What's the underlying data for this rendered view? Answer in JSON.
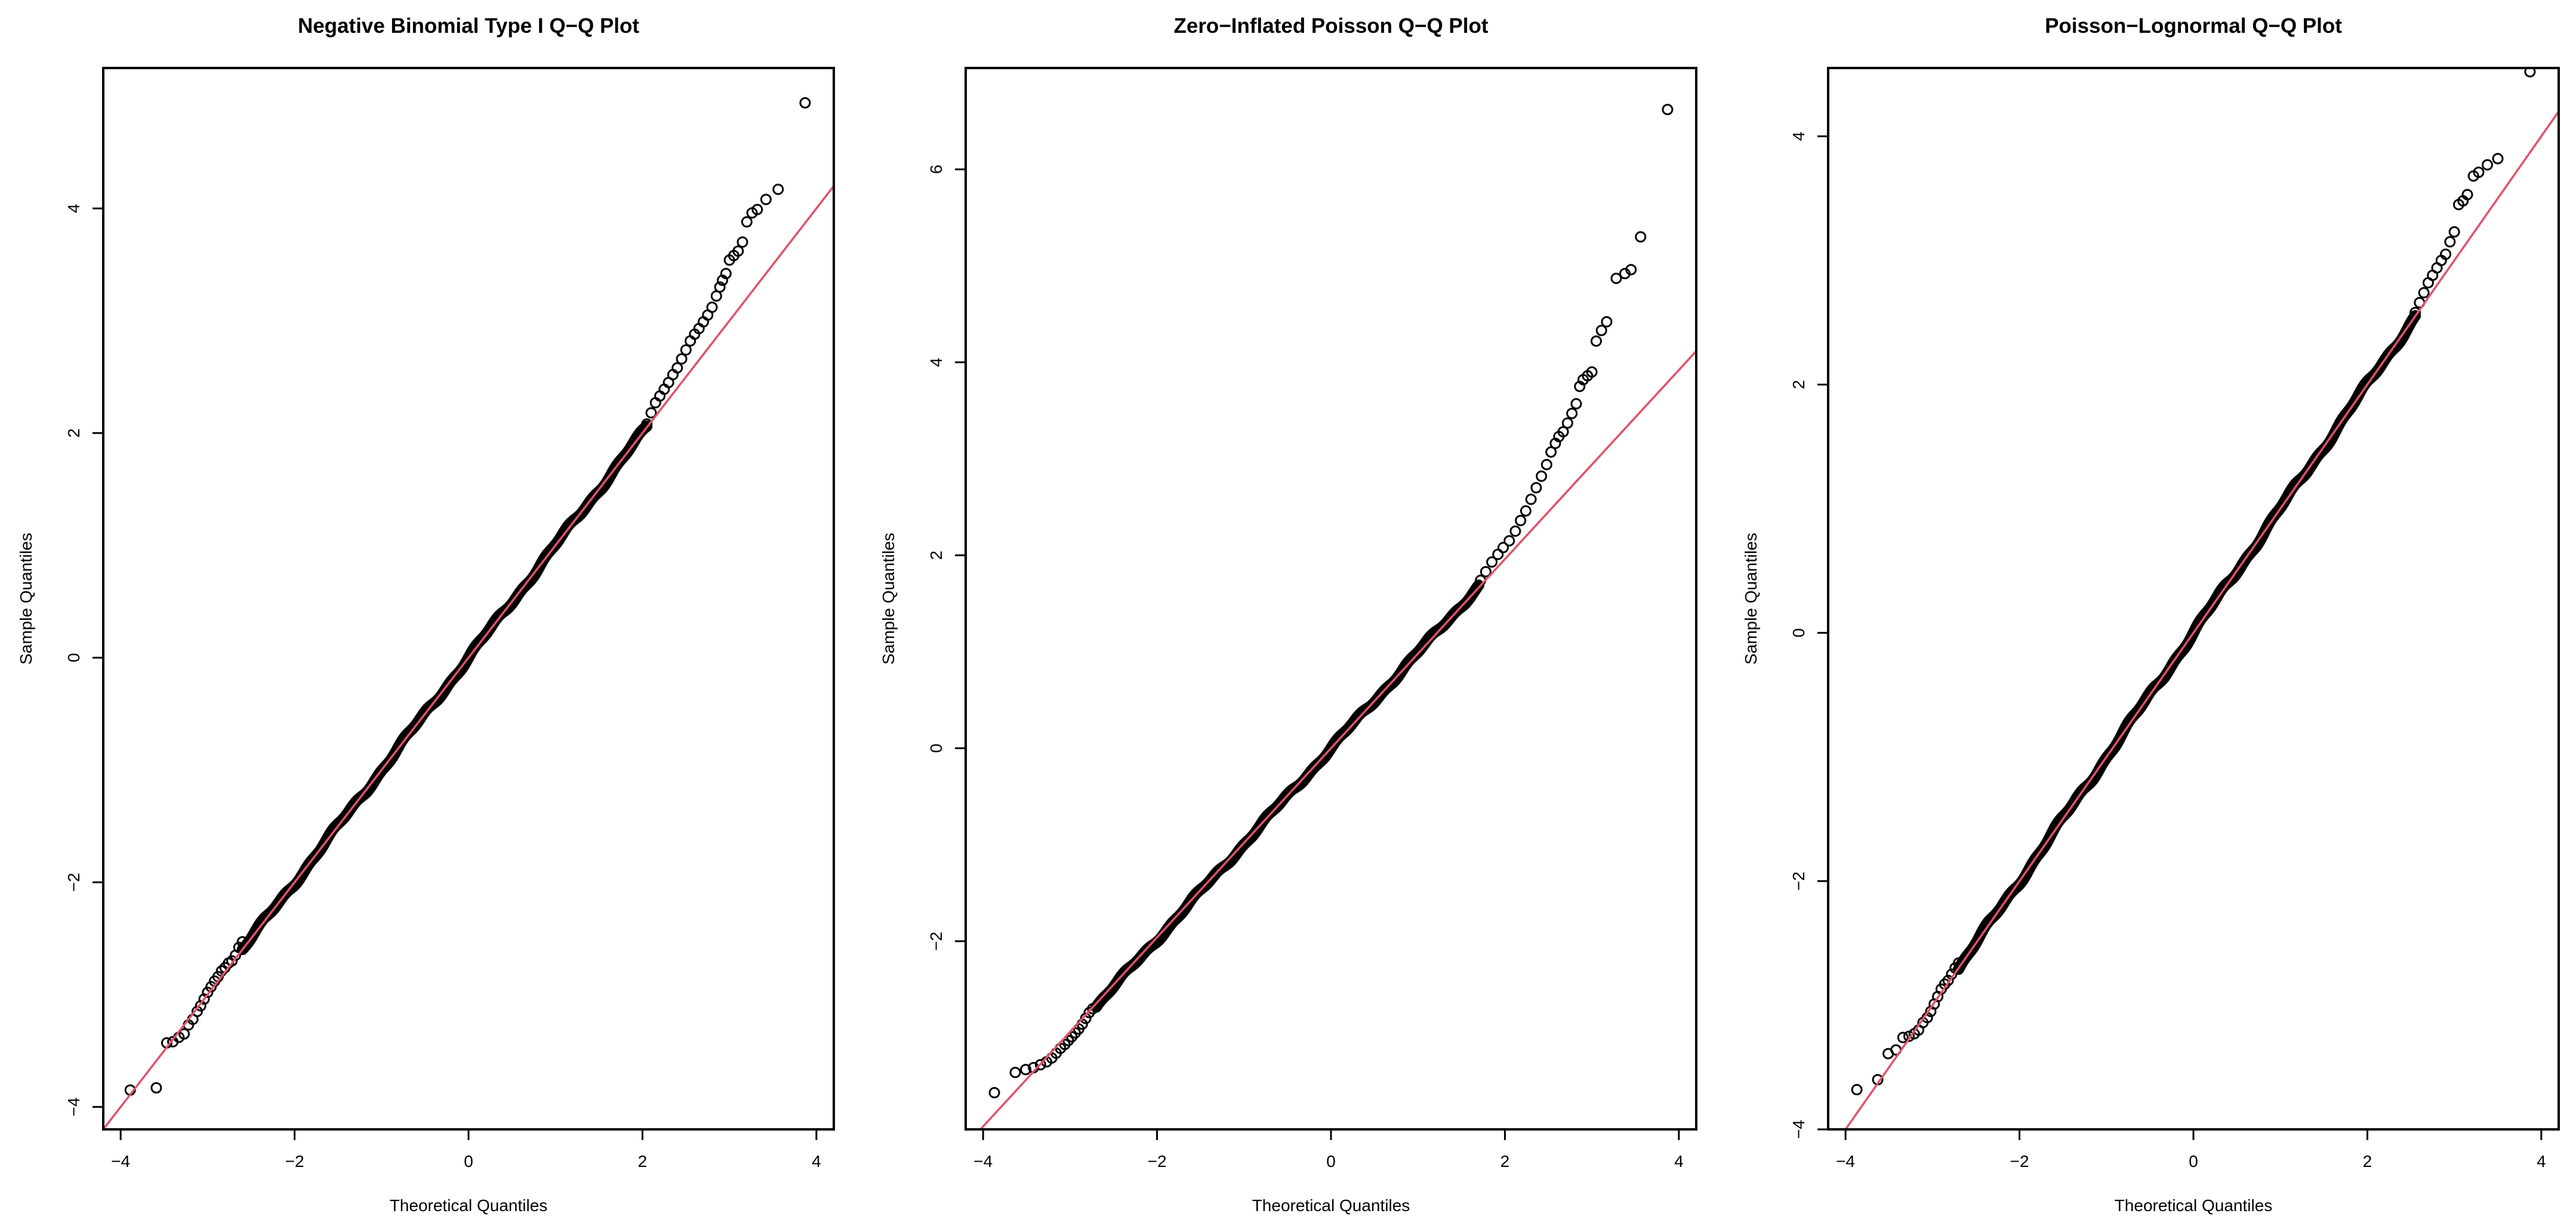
{
  "colors": {
    "points": "#000000",
    "reference_line": "#df536b",
    "background": "#ffffff"
  },
  "chart_data": [
    {
      "type": "scatter",
      "title": "Negative Binomial Type I Q−Q Plot",
      "xlabel": "Theoretical Quantiles",
      "ylabel": "Sample Quantiles",
      "xlim": [
        -4.2,
        4.2
      ],
      "ylim": [
        -4.2,
        5.25
      ],
      "xticks": [
        -4,
        -2,
        0,
        2,
        4
      ],
      "xtick_labels": [
        "−4",
        "−2",
        "0",
        "2",
        "4"
      ],
      "yticks": [
        -4,
        -2,
        0,
        2,
        4
      ],
      "ytick_labels": [
        "−4",
        "−2",
        "0",
        "2",
        "4"
      ],
      "reference_line": {
        "intercept": 0.0,
        "slope": 1.0
      },
      "lower_tail": [
        [
          -3.89,
          -3.85
        ],
        [
          -3.59,
          -3.83
        ],
        [
          -3.47,
          -3.43
        ],
        [
          -3.4,
          -3.42
        ],
        [
          -3.33,
          -3.38
        ],
        [
          -3.27,
          -3.35
        ],
        [
          -3.22,
          -3.27
        ],
        [
          -3.17,
          -3.22
        ],
        [
          -3.12,
          -3.15
        ],
        [
          -3.08,
          -3.1
        ],
        [
          -3.04,
          -3.04
        ],
        [
          -3.0,
          -2.98
        ],
        [
          -2.96,
          -2.93
        ],
        [
          -2.92,
          -2.88
        ],
        [
          -2.88,
          -2.84
        ],
        [
          -2.84,
          -2.79
        ],
        [
          -2.8,
          -2.76
        ],
        [
          -2.76,
          -2.72
        ],
        [
          -2.72,
          -2.7
        ],
        [
          -2.68,
          -2.65
        ],
        [
          -2.64,
          -2.58
        ],
        [
          -2.6,
          -2.53
        ]
      ],
      "body": {
        "from": -2.6,
        "to": 2.05,
        "intercept": 0.0,
        "slope": 1.0,
        "wiggle": 0.02
      },
      "upper_tail": [
        [
          2.05,
          2.08
        ],
        [
          2.1,
          2.18
        ],
        [
          2.15,
          2.27
        ],
        [
          2.2,
          2.33
        ],
        [
          2.25,
          2.39
        ],
        [
          2.3,
          2.45
        ],
        [
          2.35,
          2.52
        ],
        [
          2.4,
          2.58
        ],
        [
          2.45,
          2.66
        ],
        [
          2.5,
          2.74
        ],
        [
          2.55,
          2.82
        ],
        [
          2.6,
          2.88
        ],
        [
          2.65,
          2.93
        ],
        [
          2.7,
          2.99
        ],
        [
          2.75,
          3.05
        ],
        [
          2.8,
          3.12
        ],
        [
          2.85,
          3.22
        ],
        [
          2.89,
          3.3
        ],
        [
          2.92,
          3.36
        ],
        [
          2.96,
          3.42
        ],
        [
          3.0,
          3.54
        ],
        [
          3.05,
          3.58
        ],
        [
          3.1,
          3.62
        ],
        [
          3.15,
          3.7
        ],
        [
          3.2,
          3.88
        ],
        [
          3.26,
          3.96
        ],
        [
          3.32,
          3.99
        ],
        [
          3.42,
          4.08
        ],
        [
          3.56,
          4.17
        ],
        [
          3.87,
          4.94
        ]
      ]
    },
    {
      "type": "scatter",
      "title": "Zero−Inflated Poisson Q−Q Plot",
      "xlabel": "Theoretical Quantiles",
      "ylabel": "Sample Quantiles",
      "xlim": [
        -4.2,
        4.2
      ],
      "ylim": [
        -3.95,
        7.05
      ],
      "xticks": [
        -4,
        -2,
        0,
        2,
        4
      ],
      "xtick_labels": [
        "−4",
        "−2",
        "0",
        "2",
        "4"
      ],
      "yticks": [
        -2,
        0,
        2,
        4,
        6
      ],
      "ytick_labels": [
        "−2",
        "0",
        "2",
        "4",
        "6"
      ],
      "reference_line": {
        "intercept": 0.0,
        "slope": 0.98
      },
      "lower_tail": [
        [
          -3.87,
          -3.57
        ],
        [
          -3.63,
          -3.36
        ],
        [
          -3.51,
          -3.33
        ],
        [
          -3.42,
          -3.31
        ],
        [
          -3.34,
          -3.28
        ],
        [
          -3.27,
          -3.25
        ],
        [
          -3.21,
          -3.21
        ],
        [
          -3.16,
          -3.16
        ],
        [
          -3.11,
          -3.11
        ],
        [
          -3.06,
          -3.07
        ],
        [
          -3.02,
          -3.03
        ],
        [
          -2.98,
          -2.99
        ],
        [
          -2.94,
          -2.95
        ],
        [
          -2.9,
          -2.91
        ],
        [
          -2.86,
          -2.86
        ],
        [
          -2.82,
          -2.8
        ],
        [
          -2.78,
          -2.74
        ],
        [
          -2.74,
          -2.7
        ]
      ],
      "body": {
        "from": -2.7,
        "to": 1.7,
        "intercept": 0.0,
        "slope": 0.99,
        "wiggle": 0.02
      },
      "upper_tail": [
        [
          1.72,
          1.74
        ],
        [
          1.78,
          1.83
        ],
        [
          1.85,
          1.93
        ],
        [
          1.92,
          2.01
        ],
        [
          1.98,
          2.08
        ],
        [
          2.05,
          2.15
        ],
        [
          2.12,
          2.25
        ],
        [
          2.18,
          2.36
        ],
        [
          2.24,
          2.46
        ],
        [
          2.3,
          2.58
        ],
        [
          2.36,
          2.7
        ],
        [
          2.42,
          2.82
        ],
        [
          2.48,
          2.94
        ],
        [
          2.53,
          3.07
        ],
        [
          2.58,
          3.16
        ],
        [
          2.62,
          3.23
        ],
        [
          2.67,
          3.28
        ],
        [
          2.72,
          3.37
        ],
        [
          2.77,
          3.47
        ],
        [
          2.82,
          3.57
        ],
        [
          2.86,
          3.75
        ],
        [
          2.9,
          3.82
        ],
        [
          2.95,
          3.86
        ],
        [
          3.0,
          3.9
        ],
        [
          3.05,
          4.22
        ],
        [
          3.11,
          4.33
        ],
        [
          3.17,
          4.42
        ],
        [
          3.28,
          4.87
        ],
        [
          3.38,
          4.92
        ],
        [
          3.45,
          4.96
        ],
        [
          3.56,
          5.3
        ],
        [
          3.87,
          6.62
        ]
      ]
    },
    {
      "type": "scatter",
      "title": "Poisson−Lognormal Q−Q Plot",
      "xlabel": "Theoretical Quantiles",
      "ylabel": "Sample Quantiles",
      "xlim": [
        -4.2,
        4.2
      ],
      "ylim": [
        -4.0,
        4.55
      ],
      "xticks": [
        -4,
        -2,
        0,
        2,
        4
      ],
      "xtick_labels": [
        "−4",
        "−2",
        "0",
        "2",
        "4"
      ],
      "yticks": [
        -4,
        -2,
        0,
        2,
        4
      ],
      "ytick_labels": [
        "−4",
        "−2",
        "0",
        "2",
        "4"
      ],
      "reference_line": {
        "intercept": 0.0,
        "slope": 1.0
      },
      "lower_tail": [
        [
          -3.87,
          -3.68
        ],
        [
          -3.63,
          -3.6
        ],
        [
          -3.51,
          -3.39
        ],
        [
          -3.42,
          -3.36
        ],
        [
          -3.34,
          -3.26
        ],
        [
          -3.27,
          -3.25
        ],
        [
          -3.21,
          -3.23
        ],
        [
          -3.16,
          -3.2
        ],
        [
          -3.11,
          -3.14
        ],
        [
          -3.06,
          -3.1
        ],
        [
          -3.02,
          -3.05
        ],
        [
          -2.98,
          -2.99
        ],
        [
          -2.94,
          -2.93
        ],
        [
          -2.9,
          -2.87
        ],
        [
          -2.86,
          -2.83
        ],
        [
          -2.82,
          -2.8
        ],
        [
          -2.78,
          -2.75
        ],
        [
          -2.74,
          -2.7
        ],
        [
          -2.7,
          -2.66
        ]
      ],
      "body": {
        "from": -2.7,
        "to": 2.55,
        "intercept": 0.0,
        "slope": 1.0,
        "wiggle": 0.02
      },
      "upper_tail": [
        [
          2.55,
          2.58
        ],
        [
          2.6,
          2.66
        ],
        [
          2.65,
          2.74
        ],
        [
          2.7,
          2.82
        ],
        [
          2.75,
          2.88
        ],
        [
          2.8,
          2.94
        ],
        [
          2.85,
          3.0
        ],
        [
          2.9,
          3.05
        ],
        [
          2.95,
          3.15
        ],
        [
          3.0,
          3.23
        ],
        [
          3.05,
          3.45
        ],
        [
          3.1,
          3.48
        ],
        [
          3.15,
          3.53
        ],
        [
          3.22,
          3.68
        ],
        [
          3.28,
          3.71
        ],
        [
          3.38,
          3.77
        ],
        [
          3.5,
          3.82
        ],
        [
          3.87,
          4.52
        ]
      ]
    }
  ]
}
